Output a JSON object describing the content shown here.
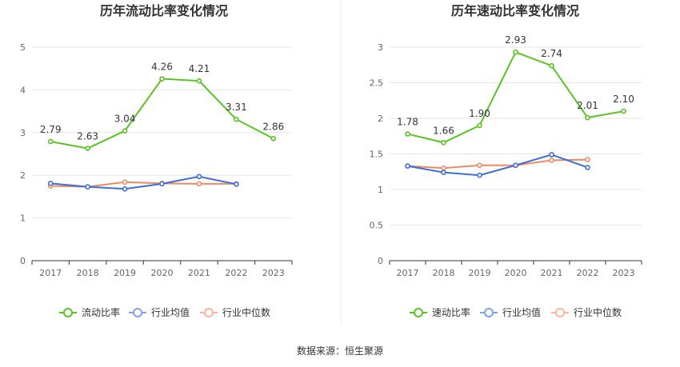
{
  "source": "数据来源：恒生聚源",
  "colors": {
    "series": [
      "#58c322",
      "#3b6fd6",
      "#ee8a62"
    ],
    "legend": [
      "#58c322",
      "#7fa2e6",
      "#f5b79c"
    ],
    "grid": "#e6e6e6",
    "axis": "#333333",
    "divider": "#eeeeee"
  },
  "chart_data": [
    {
      "type": "line",
      "title": "历年流动比率变化情况",
      "categories": [
        "2017",
        "2018",
        "2019",
        "2020",
        "2021",
        "2022",
        "2023"
      ],
      "ylim": [
        0,
        5
      ],
      "yticks": [
        "0",
        "1",
        "2",
        "3",
        "4",
        "5"
      ],
      "grid": true,
      "legend_position": "bottom",
      "series": [
        {
          "name": "流动比率",
          "values": [
            2.79,
            2.63,
            3.04,
            4.26,
            4.21,
            3.31,
            2.86
          ],
          "labels": [
            "2.79",
            "2.63",
            "3.04",
            "4.26",
            "4.21",
            "3.31",
            "2.86"
          ]
        },
        {
          "name": "行业均值",
          "values": [
            1.81,
            1.73,
            1.68,
            1.8,
            1.97,
            1.79,
            null
          ]
        },
        {
          "name": "行业中位数",
          "values": [
            1.75,
            1.73,
            1.84,
            1.81,
            1.8,
            1.8,
            null
          ]
        }
      ]
    },
    {
      "type": "line",
      "title": "历年速动比率变化情况",
      "categories": [
        "2017",
        "2018",
        "2019",
        "2020",
        "2021",
        "2022",
        "2023"
      ],
      "ylim": [
        0,
        3
      ],
      "yticks": [
        "0",
        "0.5",
        "1",
        "1.5",
        "2",
        "2.5",
        "3"
      ],
      "grid": true,
      "legend_position": "bottom",
      "series": [
        {
          "name": "速动比率",
          "values": [
            1.78,
            1.66,
            1.9,
            2.93,
            2.74,
            2.01,
            2.1
          ],
          "labels": [
            "1.78",
            "1.66",
            "1.90",
            "2.93",
            "2.74",
            "2.01",
            "2.10"
          ]
        },
        {
          "name": "行业均值",
          "values": [
            1.33,
            1.24,
            1.2,
            1.34,
            1.49,
            1.31,
            null
          ]
        },
        {
          "name": "行业中位数",
          "values": [
            1.33,
            1.3,
            1.34,
            1.34,
            1.41,
            1.42,
            null
          ]
        }
      ]
    }
  ]
}
